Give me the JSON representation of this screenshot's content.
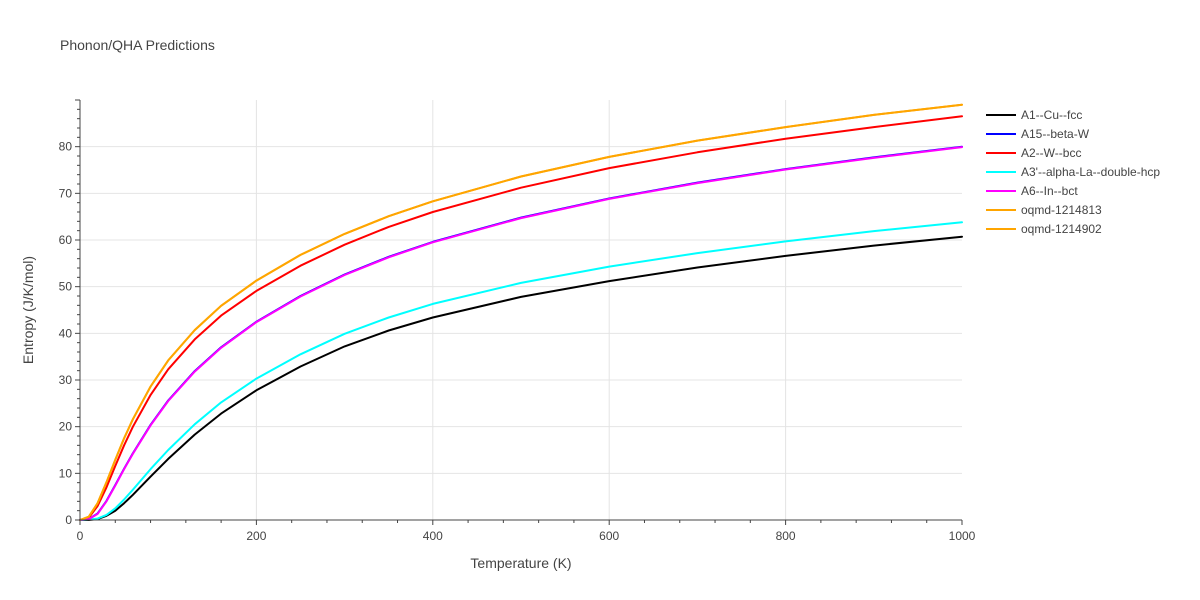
{
  "chart_data": {
    "type": "line",
    "title": "Phonon/QHA Predictions",
    "xlabel": "Temperature (K)",
    "ylabel": "Entropy (J/K/mol)",
    "xlim": [
      0,
      1000
    ],
    "ylim": [
      0,
      90
    ],
    "x_ticks": [
      "0",
      "200",
      "400",
      "600",
      "800",
      "1000"
    ],
    "y_ticks": [
      "0",
      "10",
      "20",
      "30",
      "40",
      "50",
      "60",
      "70",
      "80"
    ],
    "grid": true,
    "legend_position": "right",
    "series": [
      {
        "name": "A1--Cu--fcc",
        "color": "#000000",
        "x": [
          0,
          10,
          20,
          30,
          40,
          50,
          60,
          80,
          100,
          130,
          160,
          200,
          250,
          300,
          350,
          400,
          500,
          600,
          700,
          800,
          900,
          1000
        ],
        "y": [
          0,
          0,
          0.2,
          0.9,
          2.0,
          3.6,
          5.4,
          9.3,
          13.1,
          18.3,
          22.8,
          27.8,
          32.9,
          37.2,
          40.6,
          43.4,
          47.8,
          51.2,
          54.1,
          56.6,
          58.8,
          60.7
        ]
      },
      {
        "name": "A15--beta-W",
        "color": "#0000ff",
        "x": [
          0,
          10,
          20,
          30,
          40,
          50,
          60,
          80,
          100,
          130,
          160,
          200,
          250,
          300,
          350,
          400,
          500,
          600,
          700,
          800,
          900,
          1000
        ],
        "y": [
          0,
          0.2,
          1.4,
          4.1,
          7.5,
          11.0,
          14.3,
          20.4,
          25.6,
          31.9,
          37.0,
          42.5,
          48.0,
          52.6,
          56.4,
          59.6,
          64.8,
          68.9,
          72.3,
          75.2,
          77.7,
          80.0
        ]
      },
      {
        "name": "A2--W--bcc",
        "color": "#ff0000",
        "x": [
          0,
          10,
          20,
          30,
          40,
          50,
          60,
          80,
          100,
          130,
          160,
          200,
          250,
          300,
          350,
          400,
          500,
          600,
          700,
          800,
          900,
          1000
        ],
        "y": [
          0,
          0.5,
          3.0,
          7.0,
          11.6,
          16.0,
          20.0,
          26.8,
          32.3,
          38.7,
          43.8,
          49.1,
          54.5,
          59.0,
          62.8,
          66.0,
          71.2,
          75.4,
          78.8,
          81.7,
          84.2,
          86.5
        ]
      },
      {
        "name": "A3'--alpha-La--double-hcp",
        "color": "#00ffff",
        "x": [
          0,
          10,
          20,
          30,
          40,
          50,
          60,
          80,
          100,
          130,
          160,
          200,
          250,
          300,
          350,
          400,
          500,
          600,
          700,
          800,
          900,
          1000
        ],
        "y": [
          0,
          0.1,
          0.3,
          1.1,
          2.5,
          4.4,
          6.5,
          10.9,
          15.0,
          20.5,
          25.2,
          30.3,
          35.5,
          39.9,
          43.4,
          46.3,
          50.8,
          54.3,
          57.2,
          59.7,
          61.9,
          63.8
        ]
      },
      {
        "name": "A6--In--bct",
        "color": "#ff00ff",
        "x": [
          0,
          10,
          20,
          30,
          40,
          50,
          60,
          80,
          100,
          130,
          160,
          200,
          250,
          300,
          350,
          400,
          500,
          600,
          700,
          800,
          900,
          1000
        ],
        "y": [
          0,
          0.2,
          1.3,
          4.0,
          7.4,
          10.9,
          14.2,
          20.3,
          25.5,
          31.8,
          36.9,
          42.4,
          47.9,
          52.5,
          56.3,
          59.5,
          64.7,
          68.8,
          72.2,
          75.1,
          77.6,
          79.9
        ]
      },
      {
        "name": "oqmd-1214813",
        "color": "#ffa500",
        "x": [
          0,
          10,
          20,
          30,
          40,
          50,
          60,
          80,
          100,
          130,
          160,
          200,
          250,
          300,
          350,
          400,
          500,
          600,
          700,
          800,
          900,
          1000
        ],
        "y": [
          0,
          0.7,
          3.6,
          8.1,
          12.9,
          17.5,
          21.6,
          28.6,
          34.2,
          40.7,
          45.9,
          51.3,
          56.8,
          61.3,
          65.1,
          68.3,
          73.6,
          77.8,
          81.3,
          84.2,
          86.8,
          89.0
        ]
      },
      {
        "name": "oqmd-1214902",
        "color": "#ffa500",
        "x": [
          0,
          10,
          20,
          30,
          40,
          50,
          60,
          80,
          100,
          130,
          160,
          200,
          250,
          300,
          350,
          400,
          500,
          600,
          700,
          800,
          900,
          1000
        ],
        "y": [
          0,
          0.7,
          3.6,
          8.1,
          12.9,
          17.5,
          21.6,
          28.6,
          34.2,
          40.7,
          45.9,
          51.3,
          56.8,
          61.3,
          65.1,
          68.3,
          73.6,
          77.8,
          81.3,
          84.2,
          86.8,
          89.0
        ]
      }
    ]
  }
}
